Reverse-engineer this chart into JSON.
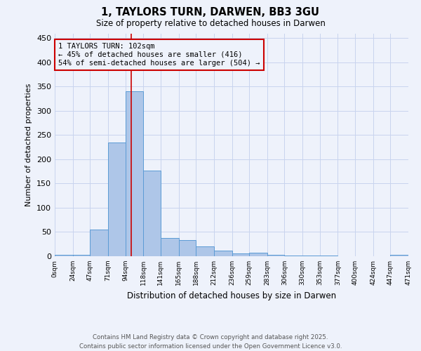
{
  "title": "1, TAYLORS TURN, DARWEN, BB3 3GU",
  "subtitle": "Size of property relative to detached houses in Darwen",
  "xlabel": "Distribution of detached houses by size in Darwen",
  "ylabel": "Number of detached properties",
  "bar_edges": [
    0,
    24,
    47,
    71,
    94,
    118,
    141,
    165,
    188,
    212,
    236,
    259,
    283,
    306,
    330,
    353,
    377,
    400,
    424,
    447,
    471
  ],
  "bar_heights": [
    3,
    3,
    55,
    235,
    340,
    177,
    37,
    33,
    20,
    12,
    6,
    7,
    3,
    2,
    1,
    1,
    0,
    0,
    0,
    3
  ],
  "bar_color": "#aec6e8",
  "bar_edge_color": "#5b9bd5",
  "property_line_x": 102,
  "annotation_text": "1 TAYLORS TURN: 102sqm\n← 45% of detached houses are smaller (416)\n54% of semi-detached houses are larger (504) →",
  "annotation_box_color": "#cc0000",
  "ylim": [
    0,
    460
  ],
  "yticks": [
    0,
    50,
    100,
    150,
    200,
    250,
    300,
    350,
    400,
    450
  ],
  "tick_labels": [
    "0sqm",
    "24sqm",
    "47sqm",
    "71sqm",
    "94sqm",
    "118sqm",
    "141sqm",
    "165sqm",
    "188sqm",
    "212sqm",
    "236sqm",
    "259sqm",
    "283sqm",
    "306sqm",
    "330sqm",
    "353sqm",
    "377sqm",
    "400sqm",
    "424sqm",
    "447sqm",
    "471sqm"
  ],
  "footer": "Contains HM Land Registry data © Crown copyright and database right 2025.\nContains public sector information licensed under the Open Government Licence v3.0.",
  "bg_color": "#eef2fb",
  "grid_color": "#c8d4ee"
}
